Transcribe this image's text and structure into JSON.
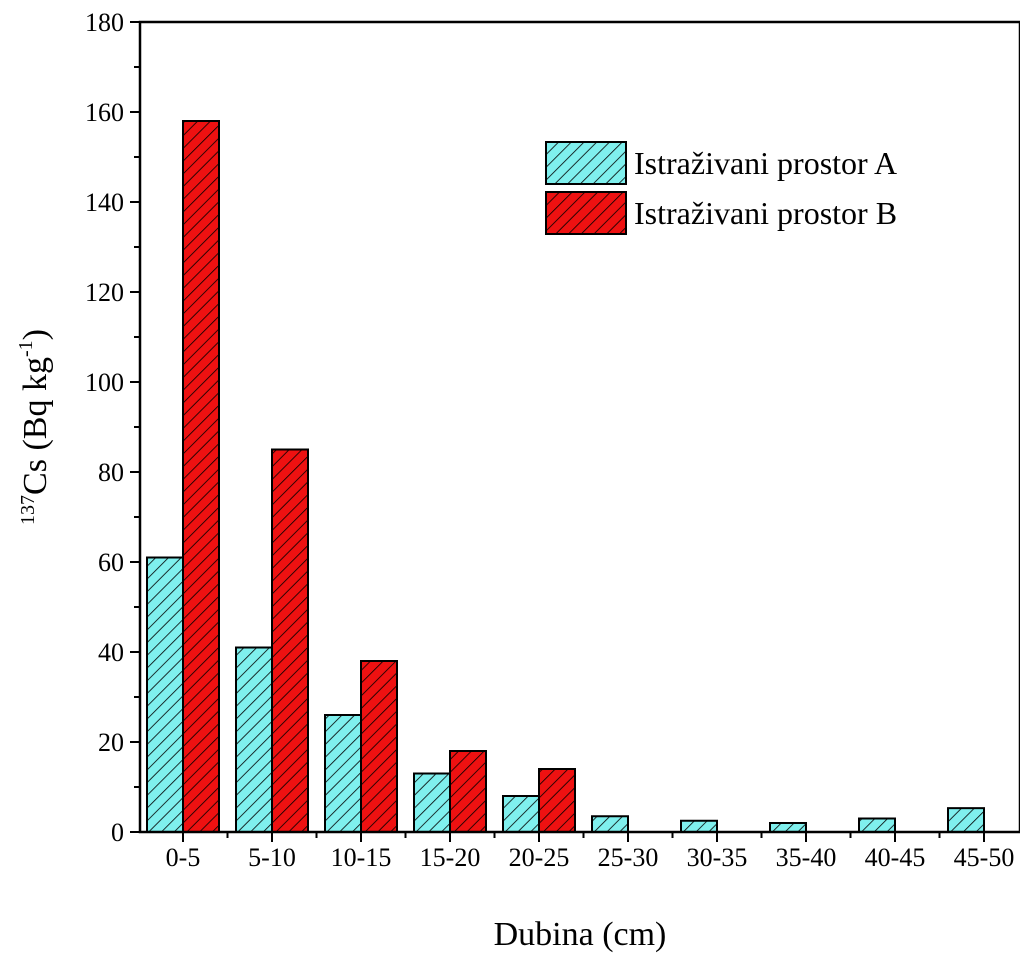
{
  "chart_data": {
    "type": "bar",
    "categories": [
      "0-5",
      "5-10",
      "10-15",
      "15-20",
      "20-25",
      "25-30",
      "30-35",
      "35-40",
      "40-45",
      "45-50"
    ],
    "series": [
      {
        "name": "Istraživani prostor A",
        "color": "#7ff0ee",
        "pattern": "hatch-diagonal",
        "values": [
          61,
          41,
          26,
          13,
          8,
          3.5,
          2.5,
          2,
          3,
          5.3
        ]
      },
      {
        "name": "Istraživani prostor B",
        "color": "#ee1111",
        "pattern": "hatch-diagonal",
        "values": [
          158,
          85,
          38,
          18,
          14,
          null,
          null,
          null,
          null,
          null
        ]
      }
    ],
    "xlabel": "Dubina (cm)",
    "ylabel": {
      "superscript": "137",
      "main": "Cs (Bq kg",
      "exponent": "-1",
      "close": ")"
    },
    "ylim": [
      0,
      180
    ],
    "yticks": [
      0,
      20,
      40,
      60,
      80,
      100,
      120,
      140,
      160,
      180
    ],
    "grid": false,
    "legend": "top-right"
  }
}
